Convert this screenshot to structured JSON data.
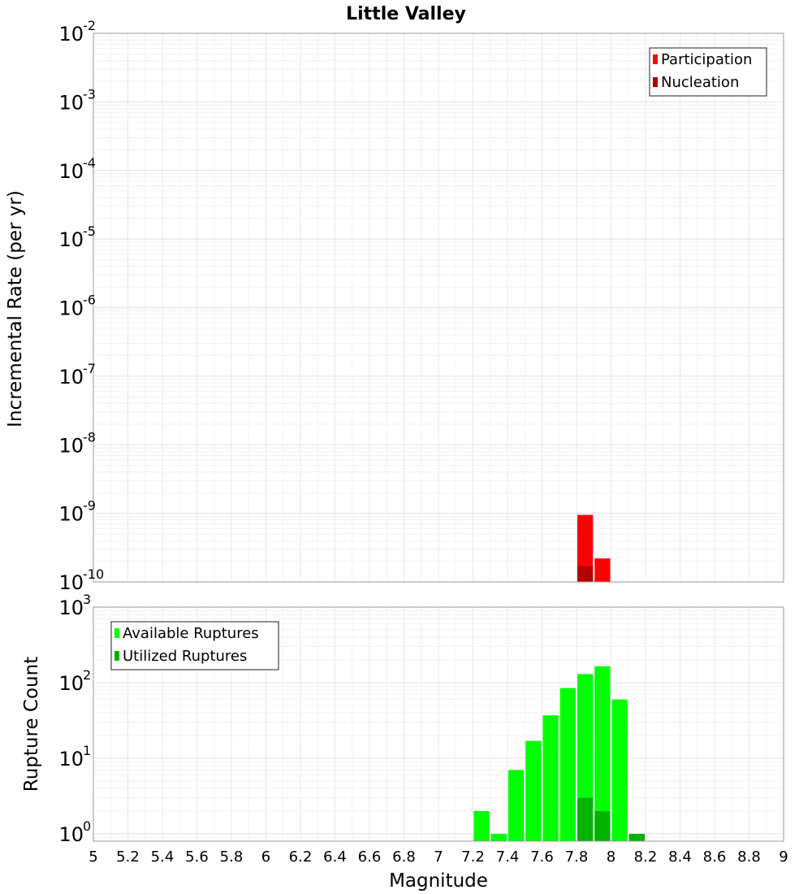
{
  "chart_data": [
    {
      "type": "bar",
      "title": "Little Valley",
      "xlabel": "",
      "ylabel": "Incremental Rate (per yr)",
      "y_scale": "log",
      "ylim": [
        1e-10,
        0.01
      ],
      "xlim": [
        5,
        9
      ],
      "bin_width": 0.1,
      "grid": true,
      "legend_position": "top-right",
      "yticks": [
        {
          "base": "10",
          "exp": "-10"
        },
        {
          "base": "10",
          "exp": "-9"
        },
        {
          "base": "10",
          "exp": "-8"
        },
        {
          "base": "10",
          "exp": "-7"
        },
        {
          "base": "10",
          "exp": "-6"
        },
        {
          "base": "10",
          "exp": "-5"
        },
        {
          "base": "10",
          "exp": "-4"
        },
        {
          "base": "10",
          "exp": "-3"
        },
        {
          "base": "10",
          "exp": "-2"
        }
      ],
      "series": [
        {
          "name": "Participation",
          "color": "#ff0000",
          "x": [
            7.85,
            7.95
          ],
          "values": [
            9.5e-10,
            2.2e-10
          ]
        },
        {
          "name": "Nucleation",
          "color": "#b30000",
          "x": [
            7.85
          ],
          "values": [
            1.7e-10
          ]
        }
      ]
    },
    {
      "type": "bar",
      "title": "",
      "xlabel": "Magnitude",
      "ylabel": "Rupture Count",
      "y_scale": "log",
      "ylim": [
        0.8,
        1000
      ],
      "xlim": [
        5,
        9
      ],
      "bin_width": 0.1,
      "grid": true,
      "legend_position": "top-left",
      "xticks": [
        "5",
        "5.2",
        "5.4",
        "5.6",
        "5.8",
        "6",
        "6.2",
        "6.4",
        "6.6",
        "6.8",
        "7",
        "7.2",
        "7.4",
        "7.6",
        "7.8",
        "8",
        "8.2",
        "8.4",
        "8.6",
        "8.8",
        "9"
      ],
      "yticks": [
        {
          "base": "10",
          "exp": "0"
        },
        {
          "base": "10",
          "exp": "1"
        },
        {
          "base": "10",
          "exp": "2"
        },
        {
          "base": "10",
          "exp": "3"
        }
      ],
      "series": [
        {
          "name": "Available Ruptures",
          "color": "#00ff00",
          "x": [
            7.25,
            7.35,
            7.45,
            7.55,
            7.65,
            7.75,
            7.85,
            7.95,
            8.05,
            8.15
          ],
          "values": [
            2,
            1,
            7,
            17,
            37,
            85,
            130,
            165,
            60,
            1
          ]
        },
        {
          "name": "Utilized Ruptures",
          "color": "#00b300",
          "x": [
            7.85,
            7.95,
            8.15
          ],
          "values": [
            3,
            2,
            1
          ]
        }
      ]
    }
  ]
}
